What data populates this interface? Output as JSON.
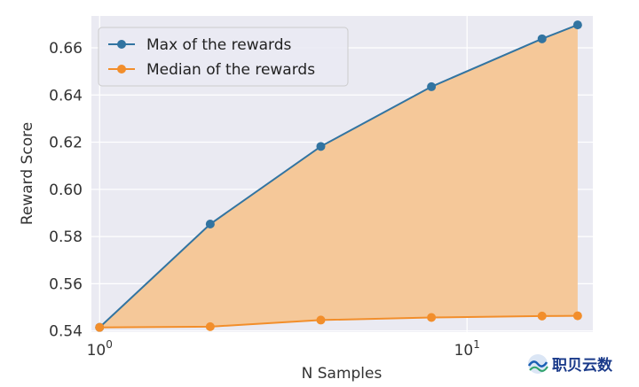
{
  "chart_data": {
    "type": "line",
    "title": "",
    "xlabel": "N Samples",
    "ylabel": "Reward Score",
    "xscale": "log",
    "xlim": [
      0.95,
      22
    ],
    "ylim": [
      0.5395,
      0.6735
    ],
    "yticks": [
      0.54,
      0.56,
      0.58,
      0.6,
      0.62,
      0.64,
      0.66
    ],
    "ytick_labels": [
      "0.54",
      "0.56",
      "0.58",
      "0.60",
      "0.62",
      "0.64",
      "0.66"
    ],
    "xticks": [
      1,
      10
    ],
    "xtick_labels": [
      {
        "base": "10",
        "exp": "0"
      },
      {
        "base": "10",
        "exp": "1"
      }
    ],
    "grid": true,
    "legend_position": "top-left",
    "fill_between_series": true,
    "fill_color": "#f5c899",
    "background": "#eaeaf2",
    "x": [
      1,
      2,
      4,
      8,
      16,
      20
    ],
    "series": [
      {
        "name": "Max of the rewards",
        "color": "#3274a1",
        "values": [
          0.5415,
          0.5853,
          0.6182,
          0.6435,
          0.6638,
          0.6697
        ]
      },
      {
        "name": "Median of the rewards",
        "color": "#f28e2b",
        "values": [
          0.5415,
          0.5418,
          0.5446,
          0.5457,
          0.5463,
          0.5464
        ]
      }
    ]
  },
  "watermark": {
    "icon": "wave-logo-icon",
    "text": "职贝云数"
  }
}
